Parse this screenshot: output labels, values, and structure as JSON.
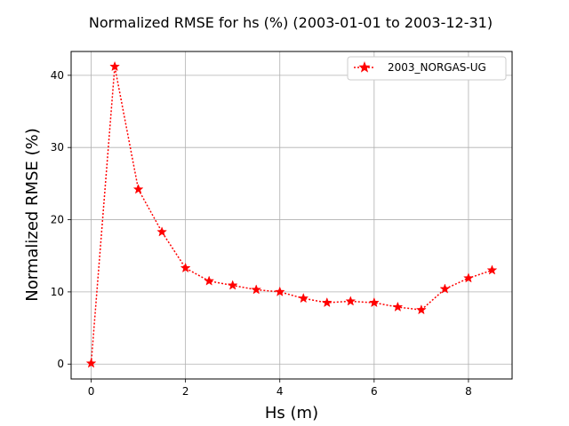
{
  "chart_data": {
    "type": "line",
    "title": "Normalized RMSE for hs (%) (2003-01-01 to 2003-12-31)",
    "xlabel": "Hs (m)",
    "ylabel": "Normalized RMSE (%)",
    "xlim": [
      -0.425,
      8.925
    ],
    "ylim": [
      -2.06,
      43.3
    ],
    "xticks": [
      0,
      2,
      4,
      6,
      8
    ],
    "yticks": [
      0,
      10,
      20,
      30,
      40
    ],
    "grid": true,
    "legend_position": "top-right",
    "series": [
      {
        "name": "2003_NORGAS-UG",
        "color": "#ff0000",
        "line_style": "dotted",
        "marker": "star",
        "x": [
          0,
          0.5,
          1.0,
          1.5,
          2.0,
          2.5,
          3.0,
          3.5,
          4.0,
          4.5,
          5.0,
          5.5,
          6.0,
          6.5,
          7.0,
          7.5,
          8.0,
          8.5
        ],
        "y": [
          0.1,
          41.2,
          24.2,
          18.3,
          13.3,
          11.5,
          10.9,
          10.3,
          10.0,
          9.1,
          8.5,
          8.7,
          8.5,
          7.9,
          7.5,
          10.4,
          11.9,
          13.0
        ]
      }
    ]
  }
}
